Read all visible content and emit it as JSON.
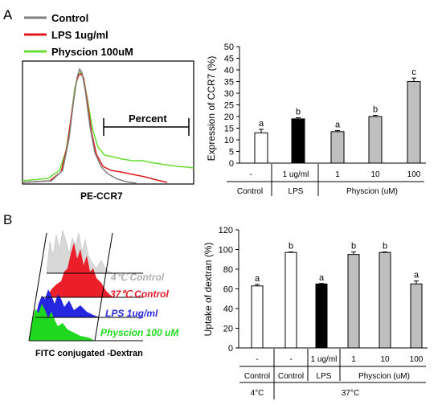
{
  "panel_a": {
    "letter": "A",
    "legend": [
      {
        "label": "Control",
        "color": "#7f7f7f"
      },
      {
        "label": "LPS 1ug/ml",
        "color": "#e0191e"
      },
      {
        "label": "Physcion 100uM",
        "color": "#66dd33"
      }
    ],
    "percent_label": "Percent",
    "histogram_xlabel": "PE-CCR7",
    "table_row1": [
      "-",
      "1 ug/ml",
      "1",
      "10",
      "100"
    ],
    "table_row2": [
      "Control",
      "LPS",
      "Physcion (uM)"
    ]
  },
  "panel_b": {
    "letter": "B",
    "overlay_labels": [
      {
        "label": "4℃ Control",
        "color": "#b0b0b0"
      },
      {
        "label": "37℃ Control",
        "color": "#e8192a"
      },
      {
        "label": "LPS 1ug/ml",
        "color": "#2a2ae6"
      },
      {
        "label": "Physcion 100 uM",
        "color": "#22dd22"
      }
    ],
    "histogram_xlabel": "FITC conjugated -Dextran",
    "table_row1": [
      "-",
      "-",
      "1 ug/ml",
      "1",
      "10",
      "100"
    ],
    "table_row2": [
      "Control",
      "Control",
      "LPS",
      "Physcion (uM)"
    ],
    "table_row3": [
      "4°C",
      "37°C"
    ]
  },
  "chart_data": [
    {
      "type": "bar",
      "categories": [
        "-",
        "1 ug/ml",
        "1",
        "10",
        "100"
      ],
      "values": [
        13,
        19,
        13.5,
        20,
        35
      ],
      "errors": [
        1.5,
        0.5,
        0.5,
        0.5,
        1.5
      ],
      "sig_letters": [
        "a",
        "b",
        "a",
        "b",
        "c"
      ],
      "fills": [
        "#ffffff",
        "#000000",
        "#bfbfbf",
        "#bfbfbf",
        "#bfbfbf"
      ],
      "ylabel": "Expression of CCR7 (%)",
      "ylim": [
        0,
        50
      ],
      "yticks": [
        0,
        5,
        10,
        15,
        20,
        25,
        30,
        35,
        40,
        45,
        50
      ]
    },
    {
      "type": "bar",
      "categories": [
        "-",
        "-",
        "1 ug/ml",
        "1",
        "10",
        "100"
      ],
      "values": [
        63,
        97,
        65,
        95,
        97,
        65
      ],
      "errors": [
        1.5,
        0.5,
        0.5,
        2.5,
        0.5,
        3
      ],
      "sig_letters": [
        "a",
        "b",
        "a",
        "b",
        "b",
        "a"
      ],
      "fills": [
        "#ffffff",
        "#ffffff",
        "#000000",
        "#bfbfbf",
        "#bfbfbf",
        "#bfbfbf"
      ],
      "ylabel": "Uptake of dextran (%)",
      "ylim": [
        0,
        120
      ],
      "yticks": [
        0,
        20,
        40,
        60,
        80,
        100,
        120
      ]
    }
  ]
}
